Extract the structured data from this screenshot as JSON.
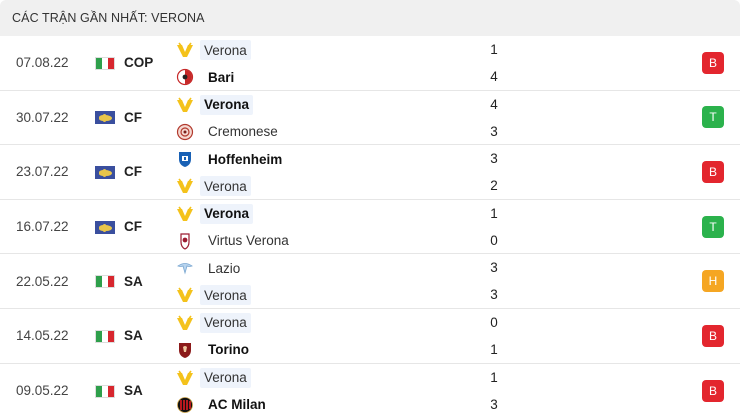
{
  "header": {
    "title": "CÁC TRẬN GẦN NHẤT: VERONA"
  },
  "colors": {
    "loss": "#e3262e",
    "win": "#2bb24c",
    "draw": "#f5a623",
    "highlight": "#eef3fb"
  },
  "matches": [
    {
      "date": "07.08.22",
      "flag": "italy-flag",
      "competition": "COP",
      "home": {
        "name": "Verona",
        "logo": "verona-logo",
        "score": "1",
        "highlight": true,
        "winner": false
      },
      "away": {
        "name": "Bari",
        "logo": "bari-logo",
        "score": "4",
        "highlight": false,
        "winner": true
      },
      "result": "B"
    },
    {
      "date": "30.07.22",
      "flag": "world-flag",
      "competition": "CF",
      "home": {
        "name": "Verona",
        "logo": "verona-logo",
        "score": "4",
        "highlight": true,
        "winner": true
      },
      "away": {
        "name": "Cremonese",
        "logo": "cremonese-logo",
        "score": "3",
        "highlight": false,
        "winner": false
      },
      "result": "T"
    },
    {
      "date": "23.07.22",
      "flag": "world-flag",
      "competition": "CF",
      "home": {
        "name": "Hoffenheim",
        "logo": "hoffenheim-logo",
        "score": "3",
        "highlight": false,
        "winner": true
      },
      "away": {
        "name": "Verona",
        "logo": "verona-logo",
        "score": "2",
        "highlight": true,
        "winner": false
      },
      "result": "B"
    },
    {
      "date": "16.07.22",
      "flag": "world-flag",
      "competition": "CF",
      "home": {
        "name": "Verona",
        "logo": "verona-logo",
        "score": "1",
        "highlight": true,
        "winner": true
      },
      "away": {
        "name": "Virtus Verona",
        "logo": "virtus-verona-logo",
        "score": "0",
        "highlight": false,
        "winner": false
      },
      "result": "T"
    },
    {
      "date": "22.05.22",
      "flag": "italy-flag",
      "competition": "SA",
      "home": {
        "name": "Lazio",
        "logo": "lazio-logo",
        "score": "3",
        "highlight": false,
        "winner": false
      },
      "away": {
        "name": "Verona",
        "logo": "verona-logo",
        "score": "3",
        "highlight": true,
        "winner": false
      },
      "result": "H"
    },
    {
      "date": "14.05.22",
      "flag": "italy-flag",
      "competition": "SA",
      "home": {
        "name": "Verona",
        "logo": "verona-logo",
        "score": "0",
        "highlight": true,
        "winner": false
      },
      "away": {
        "name": "Torino",
        "logo": "torino-logo",
        "score": "1",
        "highlight": false,
        "winner": true
      },
      "result": "B"
    },
    {
      "date": "09.05.22",
      "flag": "italy-flag",
      "competition": "SA",
      "home": {
        "name": "Verona",
        "logo": "verona-logo",
        "score": "1",
        "highlight": true,
        "winner": false
      },
      "away": {
        "name": "AC Milan",
        "logo": "ac-milan-logo",
        "score": "3",
        "highlight": false,
        "winner": true
      },
      "result": "B"
    }
  ]
}
